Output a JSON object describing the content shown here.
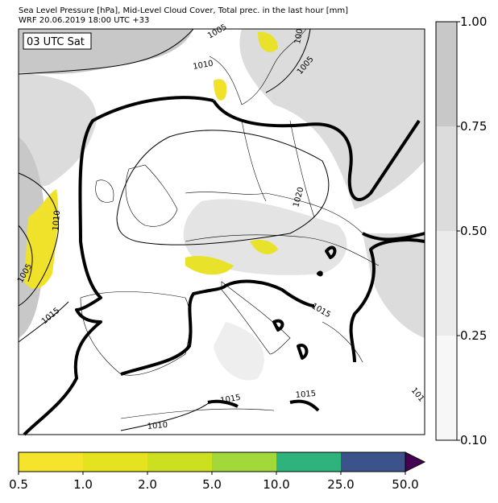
{
  "header": {
    "title": "Sea Level Pressure [hPa], Mid-Level Cloud Cover, Total prec. in the last hour [mm]",
    "subtitle": "WRF 20.06.2019 18:00 UTC +33"
  },
  "map": {
    "time_label": "03 UTC Sat",
    "contour_labels": [
      "1005",
      "1010",
      "100",
      "1005",
      "1020",
      "1010",
      "1005",
      "1015",
      "1015",
      "1015",
      "1015",
      "1010",
      "101"
    ]
  },
  "cloud_colorbar": {
    "ticks": [
      "1.00",
      "0.75",
      "0.50",
      "0.25",
      "0.10"
    ],
    "colors": [
      "#c8c8c8",
      "#dcdcdc",
      "#ebebeb",
      "#f7f7f7"
    ]
  },
  "precip_colorbar": {
    "ticks": [
      "0.5",
      "1.0",
      "2.0",
      "5.0",
      "10.0",
      "25.0",
      "50.0"
    ],
    "colors": [
      "#f6e32b",
      "#e5e21f",
      "#cde01f",
      "#a2d83a",
      "#2eb37c",
      "#3b528b"
    ],
    "extend_color": "#440154"
  }
}
